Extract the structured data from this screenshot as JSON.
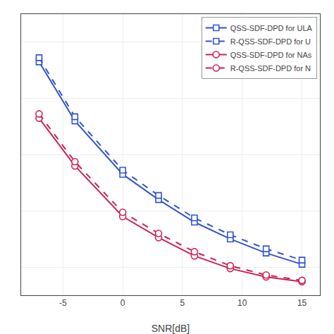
{
  "chart_data": {
    "type": "line",
    "xlabel": "SNR[dB]",
    "x": [
      -7,
      -4,
      0,
      3,
      6,
      9,
      12,
      15
    ],
    "series": [
      {
        "name": "QSS-SDF-DPD for ULA",
        "color": "#3355CC",
        "marker": "square",
        "line_style": "solid",
        "values": [
          0.93,
          0.72,
          0.53,
          0.44,
          0.36,
          0.3,
          0.25,
          0.21
        ]
      },
      {
        "name": "R-QSS-SDF-DPD for U",
        "color": "#3355CC",
        "marker": "square",
        "line_style": "dashed",
        "values": [
          0.945,
          0.735,
          0.545,
          0.455,
          0.375,
          0.315,
          0.265,
          0.225
        ]
      },
      {
        "name": "QSS-SDF-DPD for NAs",
        "color": "#CC2255",
        "marker": "circle",
        "line_style": "solid",
        "values": [
          0.73,
          0.56,
          0.38,
          0.305,
          0.24,
          0.195,
          0.165,
          0.148
        ]
      },
      {
        "name": "R-QSS-SDF-DPD for N",
        "color": "#CC2255",
        "marker": "circle",
        "line_style": "dashed",
        "values": [
          0.745,
          0.575,
          0.395,
          0.32,
          0.255,
          0.205,
          0.172,
          0.153
        ]
      }
    ],
    "xlim": [
      -8.5,
      16.5
    ],
    "xticks": [
      -5,
      0,
      5,
      10,
      15
    ],
    "ylim": [
      0.1,
      1.1
    ],
    "yticks": [
      0.2,
      0.4,
      0.6,
      0.8,
      1.0
    ],
    "tick_labels": "x",
    "grid": true,
    "legend": "upper right"
  }
}
